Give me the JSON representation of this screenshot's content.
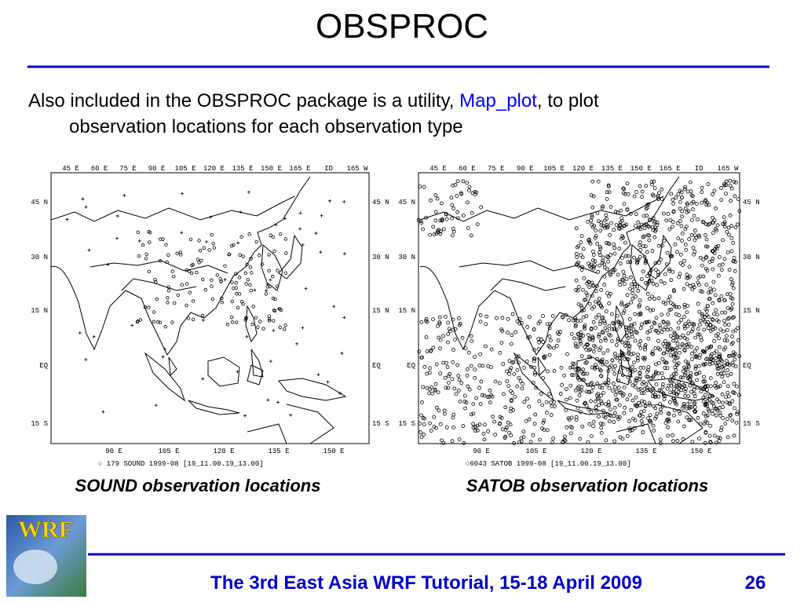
{
  "title": "OBSPROC",
  "bullet": {
    "before": "Also included in the OBSPROC package is a utility,",
    "link": "Map_plot",
    "after_line1": ", to plot",
    "line2": "observation locations for each observation type"
  },
  "maps": [
    {
      "top_labels": [
        "45 E",
        "60 E",
        "75 E",
        "90 E",
        "105 E",
        "120 E",
        "135 E",
        "150 E",
        "165 E",
        "ID",
        "165 W"
      ],
      "left_labels": [
        "45 N",
        "30 N",
        "15 N",
        "EQ",
        "15 S"
      ],
      "right_labels": [
        "45 N",
        "30 N",
        "15 N",
        "EQ",
        "15 S"
      ],
      "bottom_labels": [
        "90 E",
        "105 E",
        "120 E",
        "135 E",
        "150 E"
      ],
      "legend": "○ 179    SOUND    1999-08 [19_11.00.19_13.00]",
      "caption": "SOUND observation locations"
    },
    {
      "top_labels": [
        "45 E",
        "60 E",
        "75 E",
        "90 E",
        "105 E",
        "120 E",
        "135 E",
        "150 E",
        "165 E",
        "ID",
        "165 W"
      ],
      "left_labels": [
        "45 N",
        "30 N",
        "15 N",
        "EQ",
        "15 S"
      ],
      "right_labels": [
        "45 N",
        "30 N",
        "15 N",
        "EQ",
        "15 S"
      ],
      "bottom_labels": [
        "90 E",
        "105 E",
        "120 E",
        "135 E",
        "150 E"
      ],
      "legend": "○6043    SATOB    1999-08 [19_11.00.19_13.00]",
      "caption": "SATOB observation locations"
    }
  ],
  "footer": {
    "logo": "WRF",
    "text": "The 3rd East Asia WRF Tutorial, 15-18 April 2009",
    "page": "26"
  }
}
